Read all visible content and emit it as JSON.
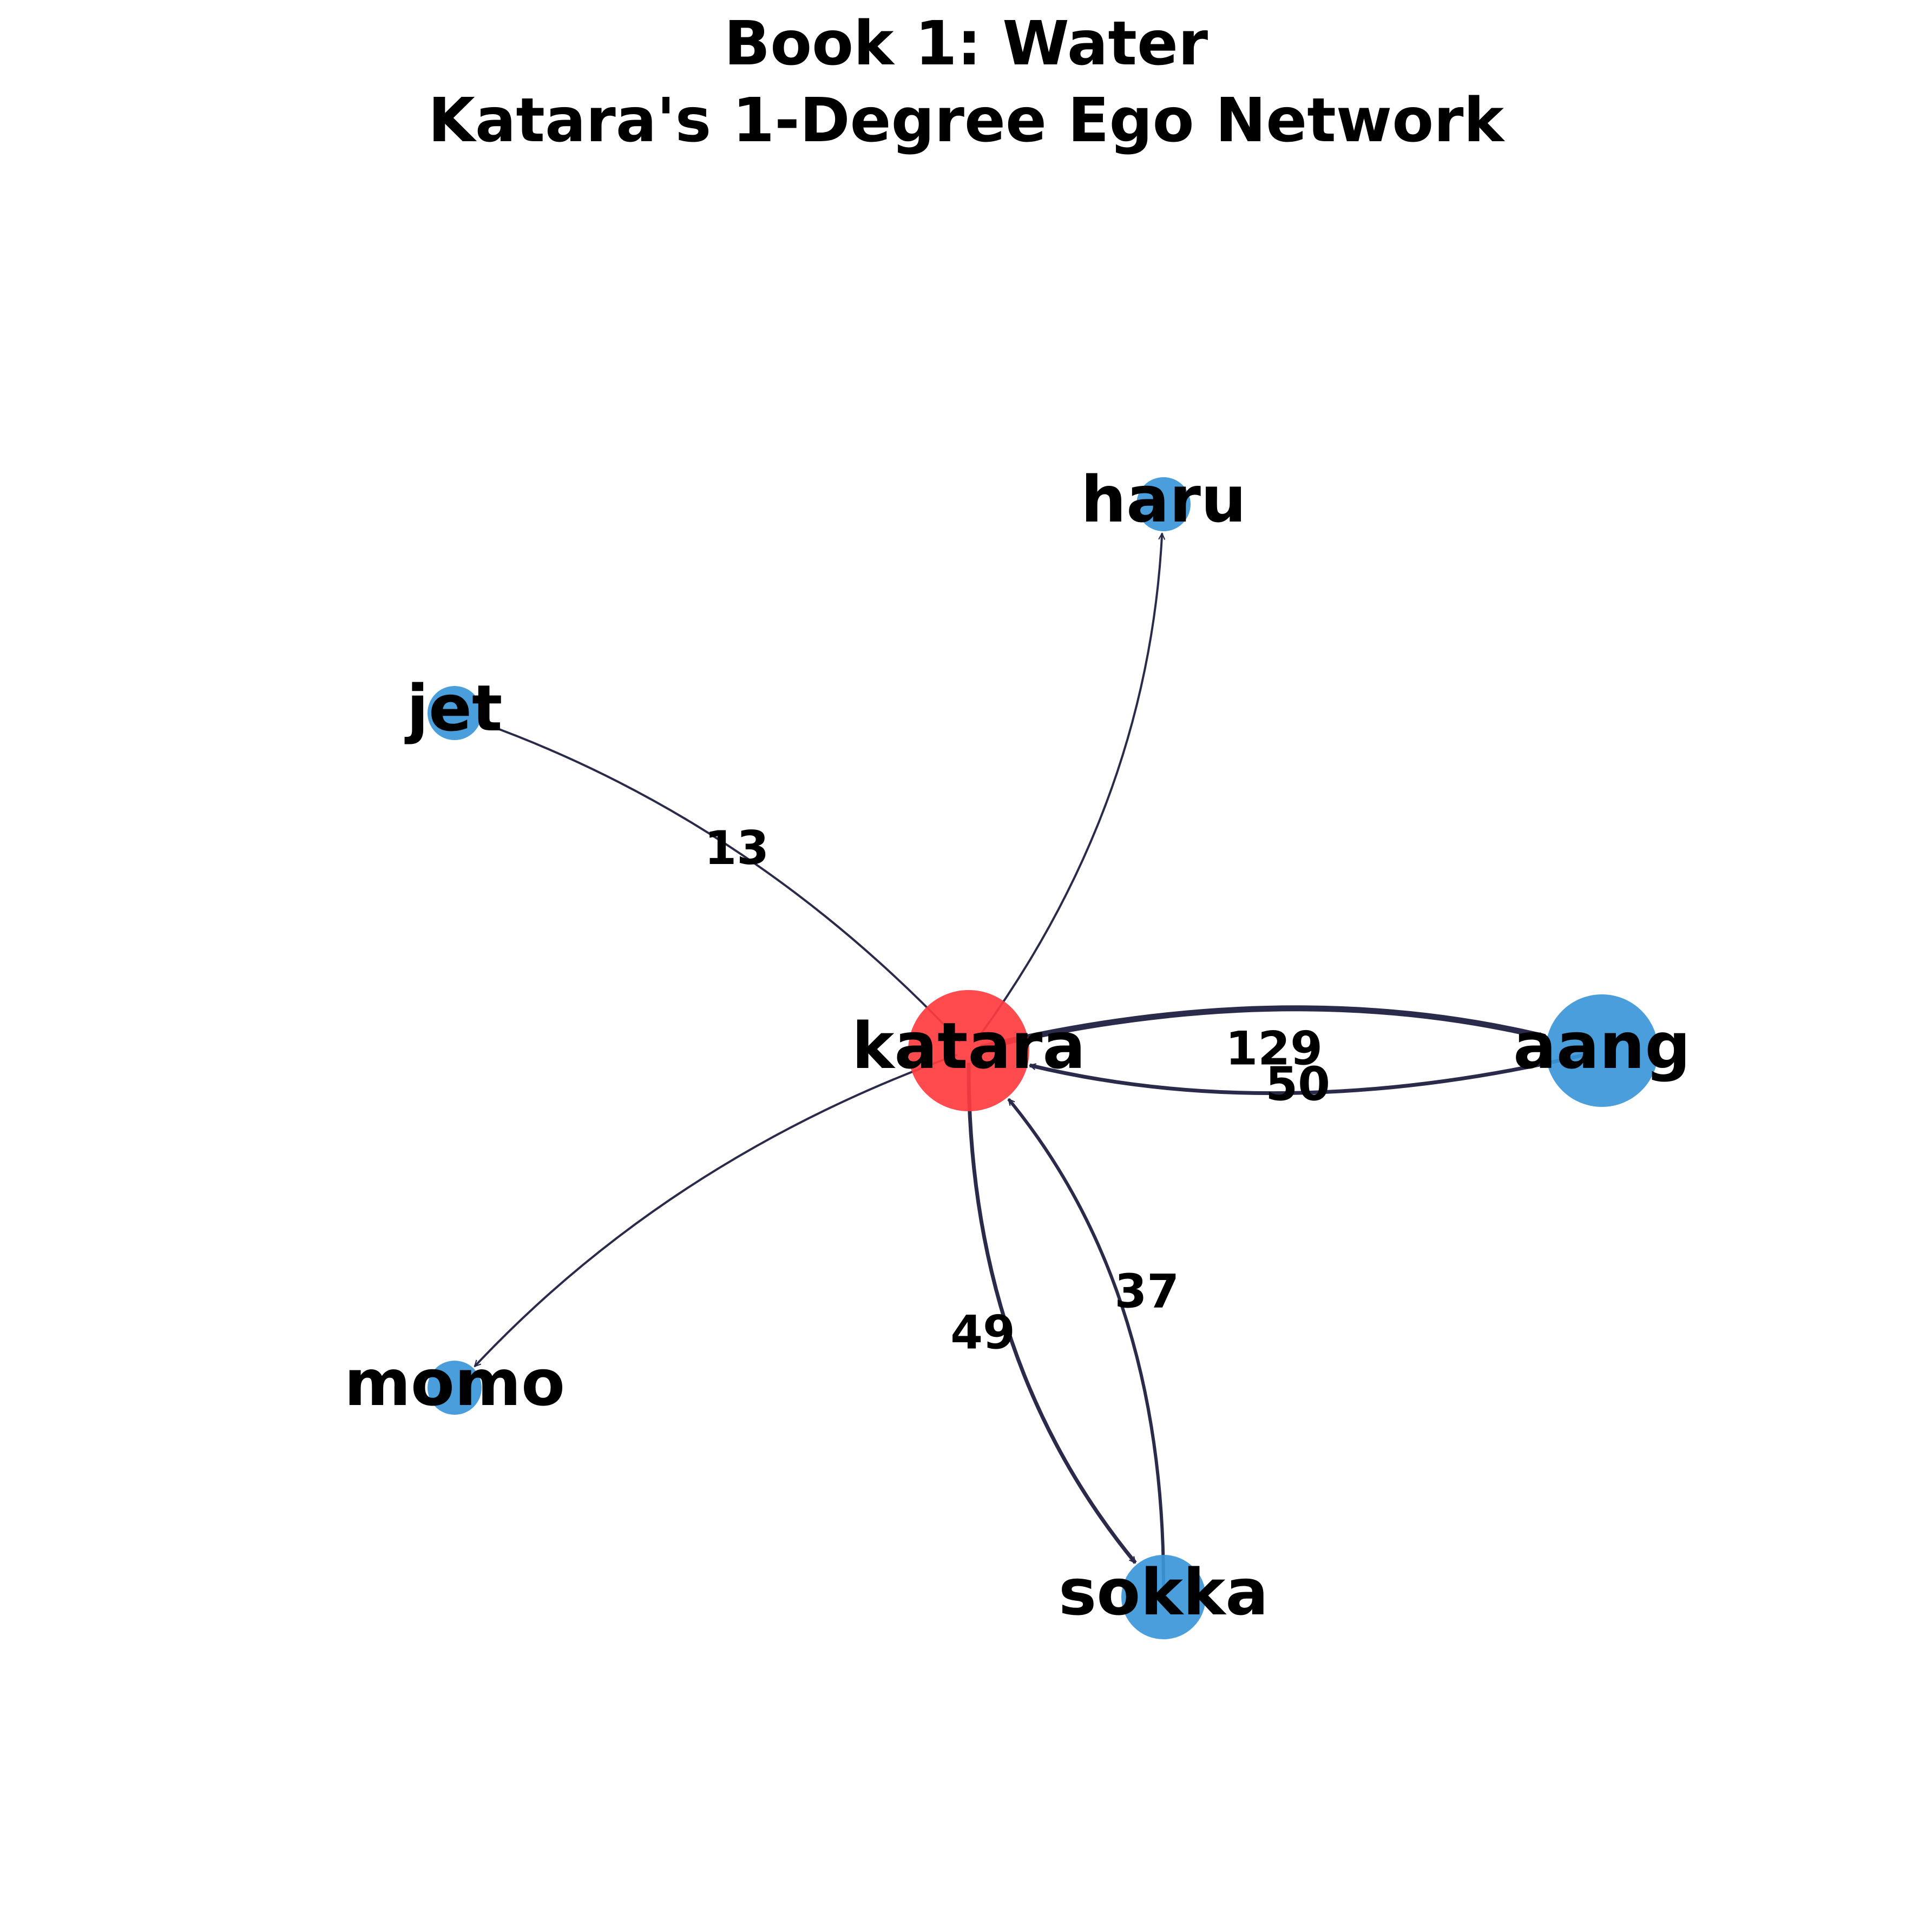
{
  "title": {
    "line1": "Book 1: Water",
    "line2": "Katara's 1-Degree Ego Network"
  },
  "colors": {
    "ego_node": "#ff3b3f",
    "neighbor_node": "#3a96d8",
    "edge": "#2a2a4a",
    "background": "#ffffff"
  },
  "nodes": [
    {
      "id": "katara",
      "label": "katara",
      "role": "ego"
    },
    {
      "id": "aang",
      "label": "aang",
      "role": "neighbor"
    },
    {
      "id": "haru",
      "label": "haru",
      "role": "neighbor"
    },
    {
      "id": "jet",
      "label": "jet",
      "role": "neighbor"
    },
    {
      "id": "momo",
      "label": "momo",
      "role": "neighbor"
    },
    {
      "id": "sokka",
      "label": "sokka",
      "role": "neighbor"
    }
  ],
  "edges": [
    {
      "source": "katara",
      "target": "aang",
      "weight": "129"
    },
    {
      "source": "aang",
      "target": "katara",
      "weight": "50"
    },
    {
      "source": "katara",
      "target": "sokka",
      "weight": "49"
    },
    {
      "source": "sokka",
      "target": "katara",
      "weight": "37"
    },
    {
      "source": "katara",
      "target": "jet",
      "weight": "13"
    },
    {
      "source": "katara",
      "target": "haru",
      "weight": ""
    },
    {
      "source": "katara",
      "target": "momo",
      "weight": ""
    }
  ]
}
